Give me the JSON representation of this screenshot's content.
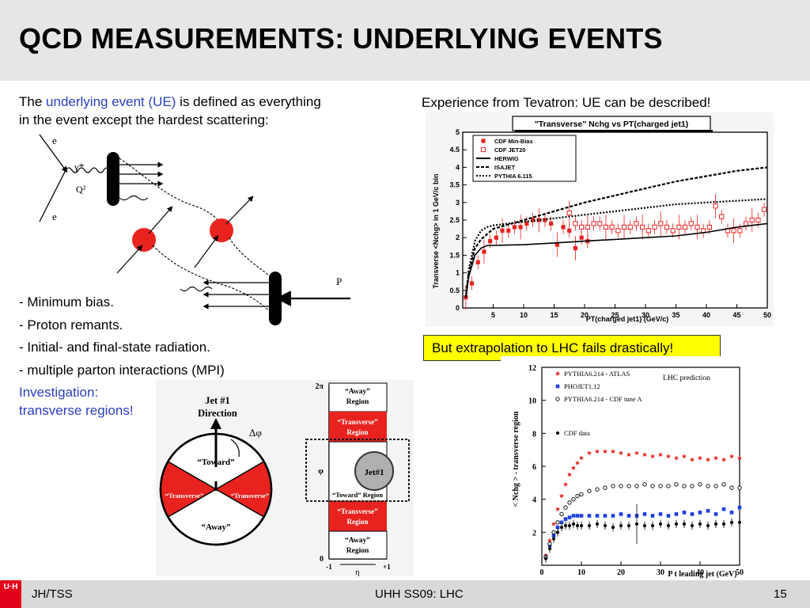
{
  "slide": {
    "title": "QCD MEASUREMENTS: UNDERLYING EVENTS",
    "intro": {
      "pre": "The ",
      "term": "underlying event (UE)",
      "post": " is defined as everything",
      "line2": "in the event except the hardest scattering:"
    },
    "bullets": [
      "- Minimum bias.",
      "- Proton remants.",
      "- Initial- and final-state radiation.",
      "- multiple parton interactions (MPI)"
    ],
    "investigation": [
      "Investigation:",
      "transverse regions!"
    ],
    "tevatron_caption": "Experience from Tevatron: UE can be described!",
    "lhc_caption": "But extrapolation to LHC fails drastically!",
    "footer": {
      "left": "JH/TSS",
      "center": "UHH SS09: LHC",
      "page": "15",
      "logo": "U·H"
    }
  },
  "feynman": {
    "labels": {
      "e_top": "e",
      "gamma": "γ*",
      "q2": "Q²",
      "e_bottom": "e",
      "p": "P"
    },
    "colors": {
      "blob": "#e8231f",
      "line": "#000000"
    }
  },
  "regions": {
    "circle": {
      "title1": "Jet #1",
      "title2": "Direction",
      "dphi": "Δφ",
      "toward": "“Toward”",
      "away": "“Away”",
      "transverse_left": "“Transverse”",
      "transverse_right": "“Transverse”"
    },
    "strip": {
      "y_top": "2π",
      "y_phi": "φ",
      "y_zero": "0",
      "x_left": "-1",
      "x_mid": "η",
      "x_right": "+1",
      "away_top": [
        "“Away”",
        "Region"
      ],
      "transverse_top": [
        "“Transverse”",
        "Region"
      ],
      "jet": "Jet#1",
      "toward": "“Toward” Region",
      "transverse_bottom": [
        "“Transverse”",
        "Region"
      ],
      "away_bottom": [
        "“Away”",
        "Region"
      ]
    },
    "colors": {
      "transverse": "#e8231f",
      "jet": "#b0b0b0"
    }
  },
  "chart_data": [
    {
      "type": "scatter",
      "title": "\"Transverse\" Nchg vs PT(charged jet1)",
      "xlabel": "PT(charged jet1) (GeV/c)",
      "ylabel": "Transverse <Nchg> in 1 GeV/c bin",
      "xlim": [
        0,
        50
      ],
      "ylim": [
        0,
        5
      ],
      "xticks": [
        5,
        10,
        15,
        20,
        25,
        30,
        35,
        40,
        45,
        50
      ],
      "yticks": [
        0,
        0.5,
        1,
        1.5,
        2,
        2.5,
        3,
        3.5,
        4,
        4.5,
        5
      ],
      "legend_position": "top-left",
      "series": [
        {
          "name": "CDF Min-Bias",
          "marker": "filled-square",
          "color": "#e8231f",
          "x": [
            0.5,
            1.5,
            2.5,
            3.5,
            4.5,
            5.5,
            6.5,
            7.5,
            8.5,
            9.5,
            10.5,
            11.5,
            12.5,
            13.5,
            14.5,
            15.5,
            16.5,
            17.5,
            18.5,
            19.5,
            20.5
          ],
          "y": [
            0.3,
            0.7,
            1.3,
            1.6,
            1.9,
            2.0,
            2.2,
            2.2,
            2.3,
            2.3,
            2.4,
            2.5,
            2.5,
            2.5,
            2.4,
            1.8,
            2.3,
            2.2,
            1.7,
            2.0,
            1.9
          ]
        },
        {
          "name": "CDF JET20",
          "marker": "open-square",
          "color": "#e8231f",
          "x": [
            17.5,
            18.5,
            19.5,
            20.5,
            21.5,
            22.5,
            23.5,
            24.5,
            25.5,
            26.5,
            27.5,
            28.5,
            29.5,
            30.5,
            31.5,
            32.5,
            33.5,
            34.5,
            35.5,
            36.5,
            37.5,
            38.5,
            39.5,
            40.5,
            41.5,
            42.5,
            43.5,
            44.5,
            45.5,
            46.5,
            47.5,
            48.5,
            49.5
          ],
          "y": [
            2.7,
            2.4,
            2.3,
            2.3,
            2.4,
            2.4,
            2.3,
            2.3,
            2.2,
            2.3,
            2.3,
            2.4,
            2.3,
            2.2,
            2.3,
            2.4,
            2.3,
            2.2,
            2.3,
            2.3,
            2.4,
            2.3,
            2.2,
            2.3,
            2.9,
            2.6,
            2.2,
            2.2,
            2.2,
            2.4,
            2.5,
            2.5,
            2.8
          ]
        },
        {
          "name": "HERWIG",
          "line": "solid",
          "x": [
            0.5,
            1,
            2,
            3,
            4,
            5,
            10,
            15,
            20,
            25,
            30,
            35,
            40,
            45,
            50
          ],
          "y": [
            0.3,
            0.9,
            1.5,
            1.7,
            1.78,
            1.78,
            1.8,
            1.85,
            1.9,
            1.95,
            2.0,
            2.05,
            2.15,
            2.3,
            2.4
          ]
        },
        {
          "name": "ISAJET",
          "line": "dashed",
          "x": [
            0.5,
            1,
            2,
            3,
            4,
            5,
            10,
            15,
            20,
            25,
            30,
            35,
            40,
            45,
            50
          ],
          "y": [
            0.3,
            1.0,
            1.7,
            1.95,
            2.1,
            2.25,
            2.5,
            2.75,
            3.0,
            3.2,
            3.4,
            3.6,
            3.75,
            3.9,
            4.0
          ]
        },
        {
          "name": "PYTHIA 6.115",
          "line": "dash-dot",
          "x": [
            0.5,
            1,
            2,
            3,
            4,
            5,
            10,
            15,
            20,
            25,
            30,
            35,
            40,
            45,
            50
          ],
          "y": [
            0.3,
            1.1,
            1.9,
            2.2,
            2.3,
            2.35,
            2.45,
            2.55,
            2.65,
            2.75,
            2.85,
            2.95,
            3.0,
            3.05,
            3.1
          ]
        }
      ]
    },
    {
      "type": "scatter",
      "title": "LHC prediction",
      "xlabel": "P t leading jet (GeV)",
      "ylabel": "< Nchg > - transverse region",
      "xlim": [
        0,
        50
      ],
      "ylim": [
        0,
        12
      ],
      "xticks": [
        0,
        10,
        20,
        30,
        40,
        50
      ],
      "yticks": [
        2,
        4,
        6,
        8,
        10,
        12
      ],
      "legend_position": "top-left",
      "series": [
        {
          "name": "PYTHIA6.214 - ATLAS",
          "marker": "star",
          "color": "#e8231f",
          "x": [
            1,
            2,
            3,
            4,
            5,
            6,
            7,
            8,
            9,
            10,
            12,
            14,
            16,
            18,
            20,
            22,
            24,
            26,
            28,
            30,
            32,
            34,
            36,
            38,
            40,
            42,
            44,
            46,
            48,
            50
          ],
          "y": [
            0.6,
            1.5,
            2.5,
            3.4,
            4.2,
            4.9,
            5.5,
            5.9,
            6.2,
            6.5,
            6.8,
            6.9,
            6.9,
            6.9,
            6.8,
            6.7,
            6.8,
            6.7,
            6.6,
            6.7,
            6.6,
            6.5,
            6.6,
            6.4,
            6.5,
            6.4,
            6.5,
            6.4,
            6.6,
            6.5
          ]
        },
        {
          "name": "PHOJET1.12",
          "marker": "filled-square",
          "color": "#1f3fe0",
          "x": [
            1,
            2,
            3,
            4,
            5,
            6,
            7,
            8,
            9,
            10,
            12,
            14,
            16,
            18,
            20,
            22,
            24,
            26,
            28,
            30,
            32,
            34,
            36,
            38,
            40,
            42,
            44,
            46,
            48,
            50
          ],
          "y": [
            0.5,
            1.2,
            1.8,
            2.3,
            2.6,
            2.8,
            2.9,
            3.0,
            3.0,
            3.0,
            3.0,
            3.0,
            3.0,
            3.0,
            3.1,
            3.0,
            3.0,
            3.1,
            3.0,
            3.1,
            3.0,
            3.1,
            3.2,
            3.1,
            3.2,
            3.3,
            3.1,
            3.4,
            3.2,
            3.5
          ]
        },
        {
          "name": "PYTHIA6.214 - CDF tune A",
          "marker": "open-circle",
          "color": "#000000",
          "x": [
            1,
            2,
            3,
            4,
            5,
            6,
            7,
            8,
            9,
            10,
            12,
            14,
            16,
            18,
            20,
            22,
            24,
            26,
            28,
            30,
            32,
            34,
            36,
            38,
            40,
            42,
            44,
            46,
            48,
            50
          ],
          "y": [
            0.5,
            1.3,
            2.0,
            2.6,
            3.1,
            3.5,
            3.8,
            4.0,
            4.2,
            4.3,
            4.5,
            4.6,
            4.7,
            4.8,
            4.8,
            4.8,
            4.8,
            4.9,
            4.8,
            4.8,
            4.8,
            4.9,
            4.8,
            4.8,
            4.9,
            4.8,
            4.8,
            4.9,
            4.7,
            4.7
          ]
        },
        {
          "name": "CDF data",
          "marker": "filled-circle",
          "color": "#000000",
          "x": [
            1,
            2,
            3,
            4,
            5,
            6,
            7,
            8,
            9,
            10,
            12,
            14,
            16,
            18,
            20,
            22,
            24,
            26,
            28,
            30,
            32,
            34,
            36,
            38,
            40,
            42,
            44,
            46,
            48,
            50
          ],
          "y": [
            0.4,
            1.0,
            1.6,
            2.0,
            2.3,
            2.4,
            2.4,
            2.5,
            2.4,
            2.4,
            2.4,
            2.5,
            2.4,
            2.3,
            2.4,
            2.4,
            2.5,
            2.4,
            2.4,
            2.5,
            2.4,
            2.5,
            2.5,
            2.4,
            2.5,
            2.4,
            2.5,
            2.5,
            2.6,
            2.6
          ]
        }
      ]
    }
  ]
}
